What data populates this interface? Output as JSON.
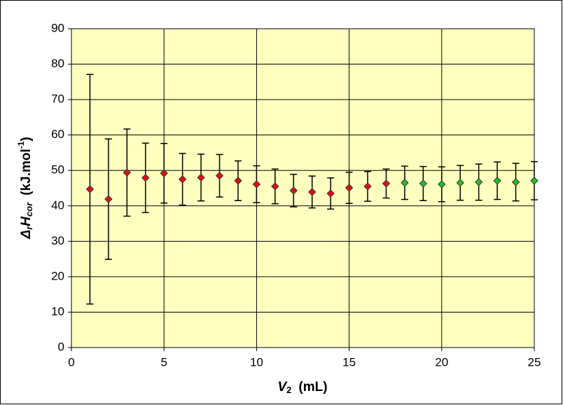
{
  "chart_data": {
    "type": "scatter",
    "xlabel": [
      "V",
      "2",
      "(mL)"
    ],
    "ylabel": [
      "Δ",
      "r",
      "H",
      "cor",
      "(kJ.mol",
      "-1",
      ")"
    ],
    "xlim": [
      0,
      25
    ],
    "xticks": [
      0,
      5,
      10,
      15,
      20,
      25
    ],
    "ylim": [
      0,
      90
    ],
    "yticks": [
      0,
      10,
      20,
      30,
      40,
      50,
      60,
      70,
      80,
      90
    ],
    "grid": true,
    "background": "#ffffc0",
    "series": [
      {
        "color": "#e01010",
        "x": [
          1,
          2,
          3,
          4,
          5,
          6,
          7,
          8,
          9,
          10,
          11,
          12,
          13,
          14,
          15,
          16,
          17
        ],
        "values": [
          44.7,
          41.9,
          49.4,
          47.9,
          49.2,
          47.5,
          48.0,
          48.5,
          47.1,
          46.1,
          45.5,
          44.3,
          43.9,
          43.5,
          45.1,
          45.5,
          46.3
        ],
        "errors": [
          32.4,
          17.0,
          12.3,
          9.8,
          8.4,
          7.3,
          6.6,
          6.0,
          5.6,
          5.2,
          4.9,
          4.6,
          4.5,
          4.4,
          4.4,
          4.2,
          4.1
        ]
      },
      {
        "color": "#20c020",
        "x": [
          18,
          19,
          20,
          21,
          22,
          23,
          24,
          25
        ],
        "values": [
          46.5,
          46.3,
          46.1,
          46.5,
          46.7,
          47.1,
          46.7,
          47.1
        ],
        "errors": [
          4.7,
          4.8,
          4.9,
          4.9,
          5.1,
          5.3,
          5.3,
          5.4
        ]
      }
    ]
  }
}
